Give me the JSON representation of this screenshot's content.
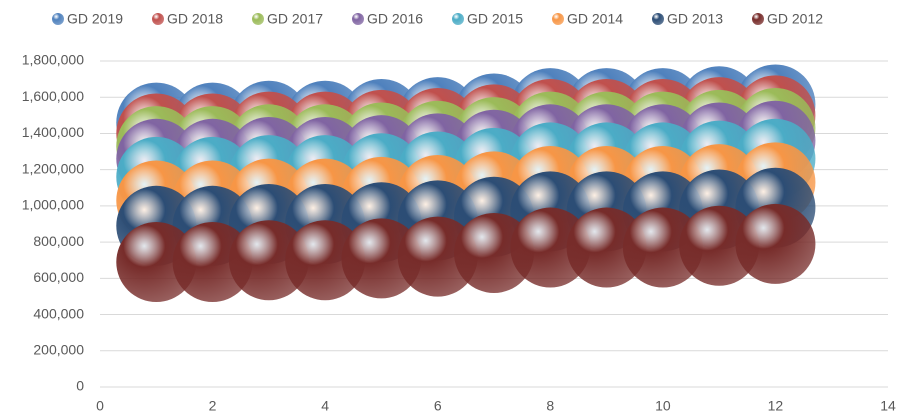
{
  "chart_data": {
    "type": "scatter",
    "series": [
      {
        "name": "GD 2019",
        "color": "#4f81bd",
        "x": [
          1,
          2,
          3,
          4,
          5,
          6,
          7,
          8,
          9,
          10,
          11,
          12
        ],
        "y": [
          1460000,
          1460000,
          1470000,
          1470000,
          1480000,
          1490000,
          1510000,
          1540000,
          1540000,
          1540000,
          1550000,
          1560000
        ]
      },
      {
        "name": "GD 2018",
        "color": "#c0504d",
        "x": [
          1,
          2,
          3,
          4,
          5,
          6,
          7,
          8,
          9,
          10,
          11,
          12
        ],
        "y": [
          1400000,
          1400000,
          1410000,
          1410000,
          1420000,
          1430000,
          1450000,
          1480000,
          1480000,
          1480000,
          1490000,
          1500000
        ]
      },
      {
        "name": "GD 2017",
        "color": "#9bbb59",
        "x": [
          1,
          2,
          3,
          4,
          5,
          6,
          7,
          8,
          9,
          10,
          11,
          12
        ],
        "y": [
          1330000,
          1330000,
          1340000,
          1340000,
          1350000,
          1360000,
          1380000,
          1410000,
          1410000,
          1410000,
          1420000,
          1430000
        ]
      },
      {
        "name": "GD 2016",
        "color": "#8064a2",
        "x": [
          1,
          2,
          3,
          4,
          5,
          6,
          7,
          8,
          9,
          10,
          11,
          12
        ],
        "y": [
          1260000,
          1260000,
          1270000,
          1270000,
          1280000,
          1290000,
          1310000,
          1340000,
          1340000,
          1340000,
          1350000,
          1360000
        ]
      },
      {
        "name": "GD 2015",
        "color": "#4bacc6",
        "x": [
          1,
          2,
          3,
          4,
          5,
          6,
          7,
          8,
          9,
          10,
          11,
          12
        ],
        "y": [
          1160000,
          1160000,
          1170000,
          1170000,
          1180000,
          1190000,
          1210000,
          1240000,
          1240000,
          1240000,
          1250000,
          1260000
        ]
      },
      {
        "name": "GD 2014",
        "color": "#f79646",
        "x": [
          1,
          2,
          3,
          4,
          5,
          6,
          7,
          8,
          9,
          10,
          11,
          12
        ],
        "y": [
          1030000,
          1030000,
          1040000,
          1040000,
          1050000,
          1060000,
          1080000,
          1110000,
          1110000,
          1110000,
          1120000,
          1130000
        ]
      },
      {
        "name": "GD 2013",
        "color": "#2c4d75",
        "x": [
          1,
          2,
          3,
          4,
          5,
          6,
          7,
          8,
          9,
          10,
          11,
          12
        ],
        "y": [
          890000,
          890000,
          900000,
          900000,
          910000,
          920000,
          940000,
          970000,
          970000,
          970000,
          980000,
          990000
        ]
      },
      {
        "name": "GD 2012",
        "color": "#772c2a",
        "x": [
          1,
          2,
          3,
          4,
          5,
          6,
          7,
          8,
          9,
          10,
          11,
          12
        ],
        "y": [
          690000,
          690000,
          700000,
          700000,
          710000,
          720000,
          740000,
          770000,
          770000,
          770000,
          780000,
          790000
        ]
      }
    ],
    "xlim": [
      0,
      14
    ],
    "xticks": [
      0,
      2,
      4,
      6,
      8,
      10,
      12,
      14
    ],
    "ylim": [
      0,
      1800000
    ],
    "yticks": [
      0,
      {
        "value": 200000,
        "label": "200,000"
      },
      {
        "value": 400000,
        "label": "400,000"
      },
      {
        "value": 600000,
        "label": "600,000"
      },
      {
        "value": 800000,
        "label": "800,000"
      },
      {
        "value": 1000000,
        "label": "1,000,000"
      },
      {
        "value": 1200000,
        "label": "1,200,000"
      },
      {
        "value": 1400000,
        "label": "1,400,000"
      },
      {
        "value": 1600000,
        "label": "1,600,000"
      },
      {
        "value": 1800000,
        "label": "1,800,000"
      }
    ],
    "grid": true,
    "legend": "top"
  }
}
